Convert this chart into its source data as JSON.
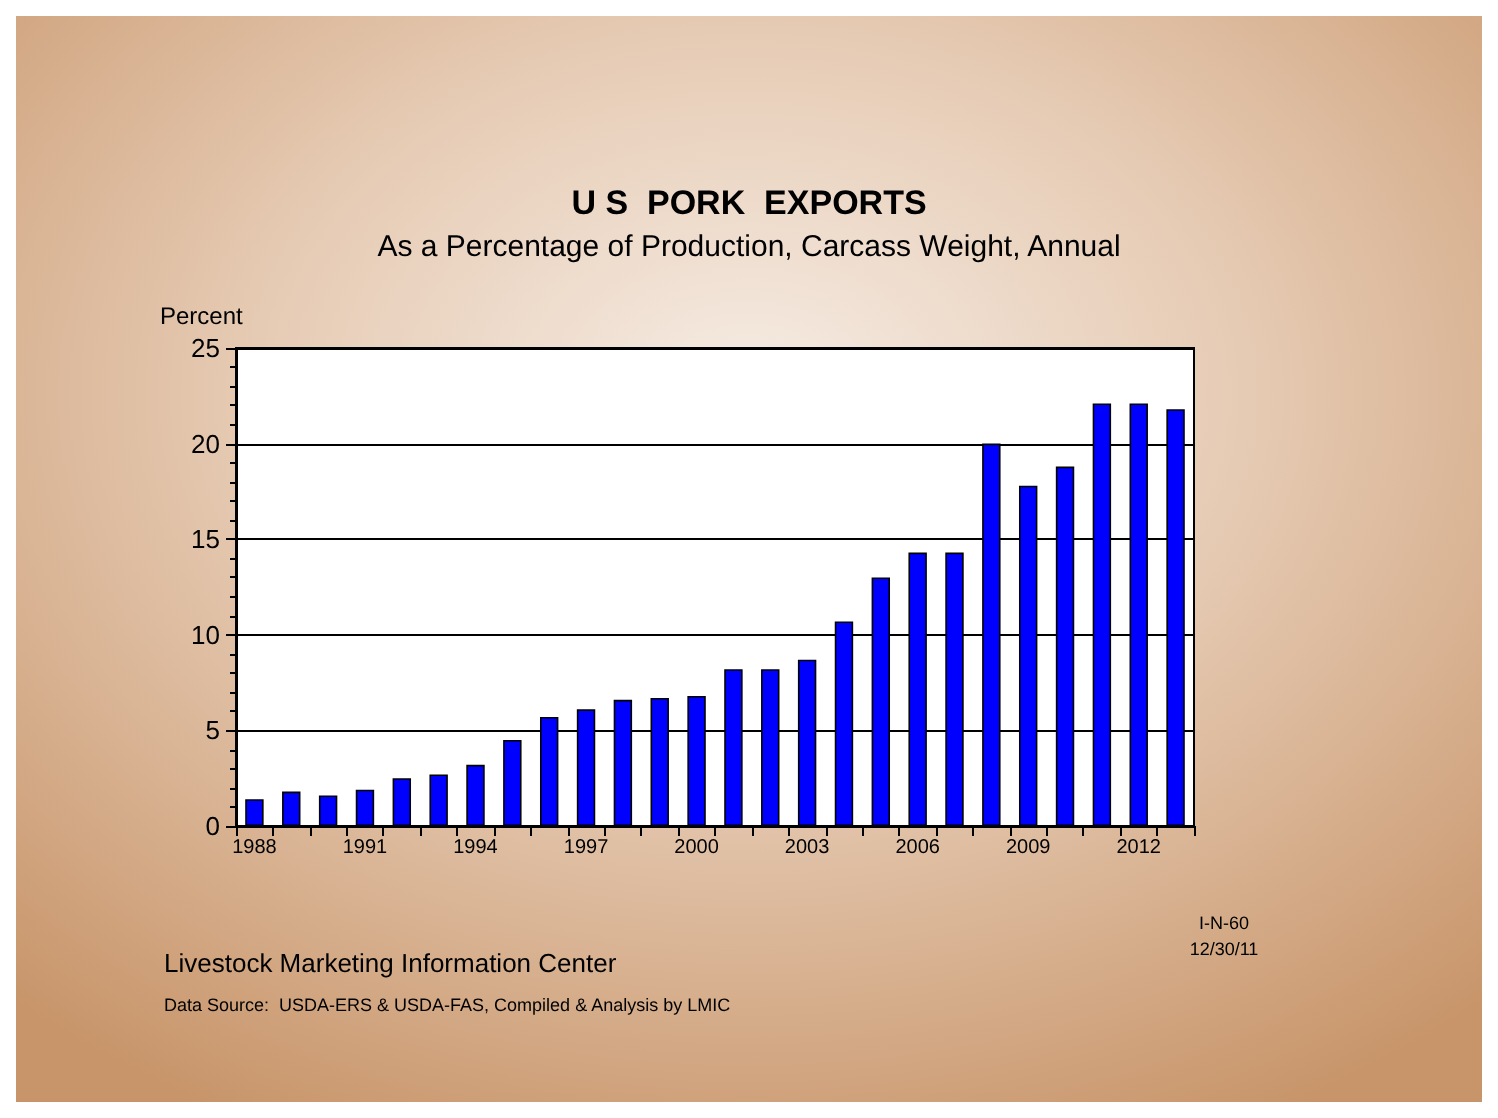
{
  "chart_data": {
    "type": "bar",
    "title": "U S  PORK  EXPORTS",
    "subtitle": "As a Percentage of Production, Carcass Weight, Annual",
    "ylabel": "Percent",
    "categories": [
      "1988",
      null,
      null,
      "1991",
      null,
      null,
      "1994",
      null,
      null,
      "1997",
      null,
      null,
      "2000",
      null,
      null,
      "2003",
      null,
      null,
      "2006",
      null,
      null,
      "2009",
      null,
      null,
      "2012",
      null
    ],
    "values": [
      1.4,
      1.8,
      1.6,
      1.9,
      2.5,
      2.7,
      3.2,
      4.5,
      5.7,
      6.1,
      6.6,
      6.7,
      6.8,
      8.2,
      8.2,
      8.7,
      10.7,
      13.0,
      14.3,
      14.3,
      20.0,
      17.8,
      18.8,
      22.1,
      22.1,
      21.8
    ],
    "color": "#0000ff",
    "ylim": [
      0,
      25
    ],
    "yticks": [
      0,
      5,
      10,
      15,
      20,
      25
    ],
    "grid": "y",
    "annotations": [
      "Livestock Marketing Information Center",
      "Data Source:  USDA-ERS & USDA-FAS, Compiled & Analysis by LMIC",
      "I-N-60",
      "12/30/11"
    ]
  }
}
